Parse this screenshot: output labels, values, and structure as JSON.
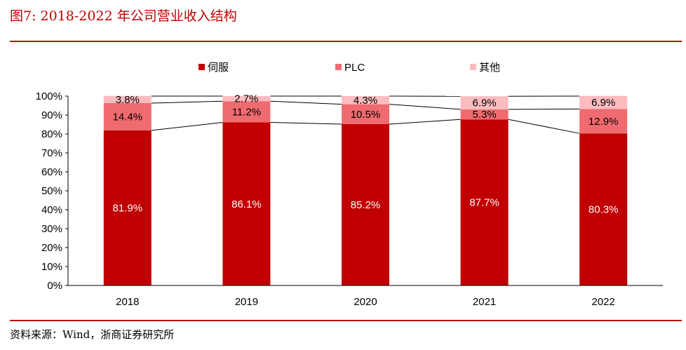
{
  "figure": {
    "title": "图7:   2018-2022 年公司营业收入结构",
    "source": "资料来源：Wind，浙商证券研究所"
  },
  "chart_data": {
    "type": "bar",
    "stacked": true,
    "categories": [
      "2018",
      "2019",
      "2020",
      "2021",
      "2022"
    ],
    "series": [
      {
        "name": "伺服",
        "color": "#c00000",
        "values": [
          81.9,
          86.1,
          85.2,
          87.7,
          80.3
        ],
        "labels": [
          "81.9%",
          "86.1%",
          "85.2%",
          "87.7%",
          "80.3%"
        ]
      },
      {
        "name": "PLC",
        "color": "#f06b6f",
        "values": [
          14.4,
          11.2,
          10.5,
          5.3,
          12.9
        ],
        "labels": [
          "14.4%",
          "11.2%",
          "10.5%",
          "5.3%",
          "12.9%"
        ]
      },
      {
        "name": "其他",
        "color": "#fbbcc0",
        "values": [
          3.8,
          2.7,
          4.3,
          6.9,
          6.9
        ],
        "labels": [
          "3.8%",
          "2.7%",
          "4.3%",
          "6.9%",
          "6.9%"
        ]
      }
    ],
    "yticks": [
      "0%",
      "10%",
      "20%",
      "30%",
      "40%",
      "50%",
      "60%",
      "70%",
      "80%",
      "90%",
      "100%"
    ],
    "ylim": [
      0,
      100
    ],
    "legend_position": "top",
    "series_lines": true
  }
}
